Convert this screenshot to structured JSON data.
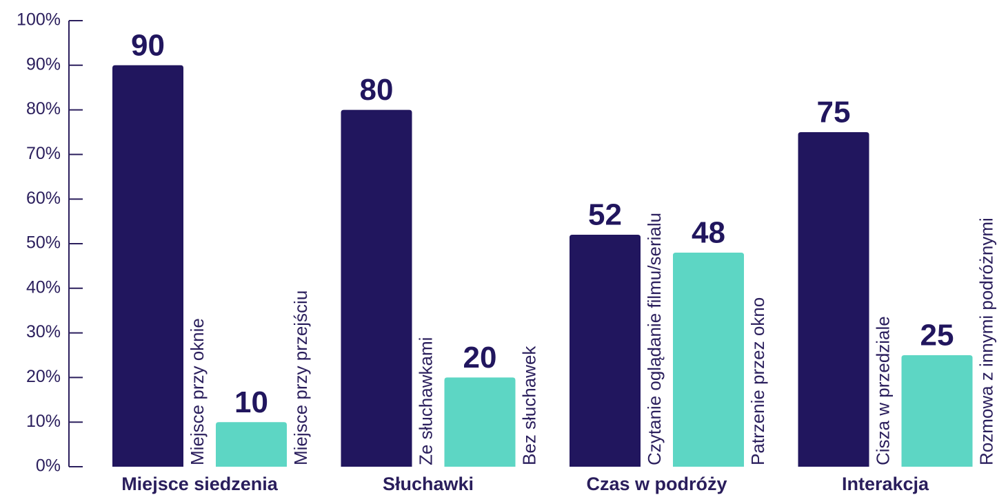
{
  "chart_data": {
    "type": "bar",
    "groups": [
      {
        "name": "Miejsce siedzenia",
        "bars": [
          {
            "label": "Miejsce przy oknie",
            "value": 90,
            "color": "#21165e"
          },
          {
            "label": "Miejsce przy przejściu",
            "value": 10,
            "color": "#5dd6c4"
          }
        ]
      },
      {
        "name": "Słuchawki",
        "bars": [
          {
            "label": "Ze słuchawkami",
            "value": 80,
            "color": "#21165e"
          },
          {
            "label": "Bez słuchawek",
            "value": 20,
            "color": "#5dd6c4"
          }
        ]
      },
      {
        "name": "Czas w podróży",
        "bars": [
          {
            "label": "Czytanie oglądanie filmu/serialu",
            "value": 52,
            "color": "#21165e"
          },
          {
            "label": "Patrzenie przez okno",
            "value": 48,
            "color": "#5dd6c4"
          }
        ]
      },
      {
        "name": "Interakcja",
        "bars": [
          {
            "label": "Cisza w przedziale",
            "value": 75,
            "color": "#21165e"
          },
          {
            "label": "Rozmowa z innymi podróżnymi",
            "value": 25,
            "color": "#5dd6c4"
          }
        ]
      }
    ],
    "ylim": [
      0,
      100
    ],
    "yticks": [
      {
        "value": 0,
        "label": "0%"
      },
      {
        "value": 10,
        "label": "10%"
      },
      {
        "value": 20,
        "label": "20%"
      },
      {
        "value": 30,
        "label": "30%"
      },
      {
        "value": 40,
        "label": "40%"
      },
      {
        "value": 50,
        "label": "50%"
      },
      {
        "value": 60,
        "label": "60%"
      },
      {
        "value": 70,
        "label": "70%"
      },
      {
        "value": 80,
        "label": "80%"
      },
      {
        "value": 90,
        "label": "90%"
      },
      {
        "value": 100,
        "label": "100%"
      }
    ]
  }
}
